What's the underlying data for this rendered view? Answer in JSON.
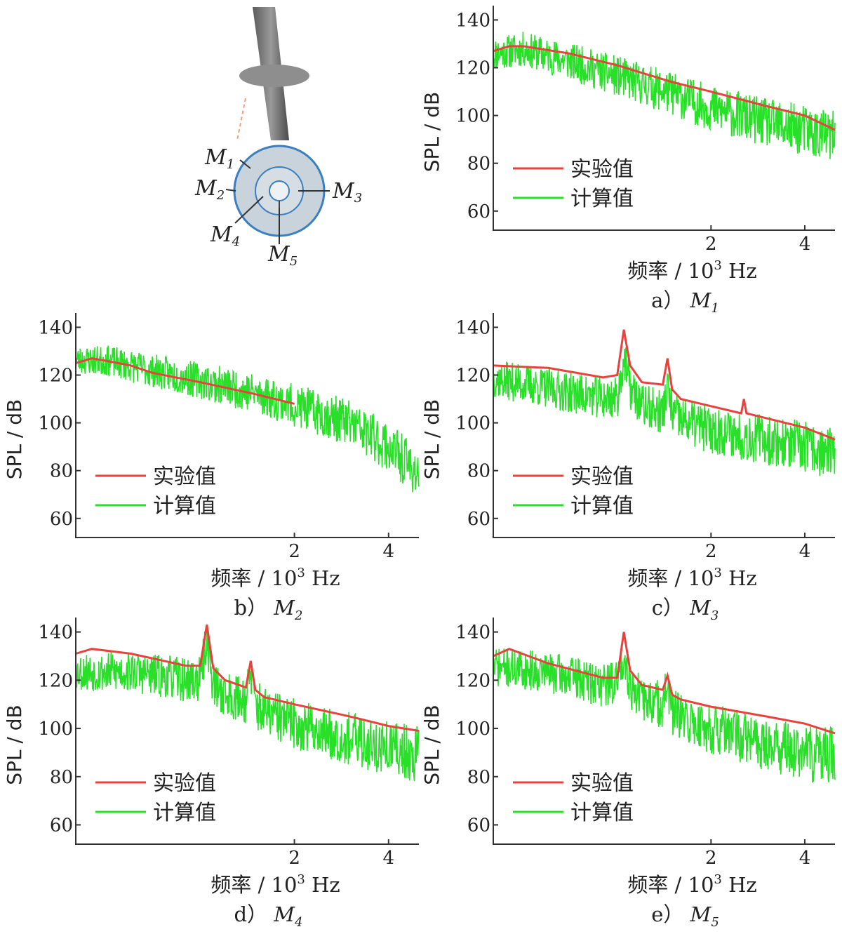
{
  "figure": {
    "schematic": {
      "labels": [
        {
          "name": "M",
          "sub": "1"
        },
        {
          "name": "M",
          "sub": "2"
        },
        {
          "name": "M",
          "sub": "3"
        },
        {
          "name": "M",
          "sub": "4"
        },
        {
          "name": "M",
          "sub": "5"
        }
      ]
    }
  },
  "chart_data": [
    {
      "type": "line",
      "panel_label": "a）",
      "panel_point": "M",
      "panel_sub": "1",
      "ylabel": "SPL / dB",
      "xlabel_prefix": "频率 / 10",
      "xlabel_exp": "3",
      "xlabel_unit": " Hz",
      "x_scale": "log",
      "xlim": [
        0.4,
        5.0
      ],
      "ylim": [
        52,
        146
      ],
      "y_ticks": [
        60,
        80,
        100,
        120,
        140
      ],
      "x_ticks": [
        {
          "value": 2,
          "label": "2"
        },
        {
          "value": 4,
          "label": "4"
        }
      ],
      "legend_position": "lower-left",
      "series": [
        {
          "name": "实验值",
          "color": "#e8423f",
          "x": [
            0.4,
            0.45,
            0.5,
            0.7,
            1.0,
            1.5,
            2.0,
            3.0,
            4.0,
            5.0
          ],
          "y": [
            127,
            129,
            129,
            126,
            121,
            114,
            110,
            104,
            100,
            94
          ]
        },
        {
          "name": "计算值",
          "color": "#27e027",
          "x": [
            0.4,
            0.5,
            0.7,
            1.0,
            1.5,
            2.0,
            3.0,
            4.0,
            5.0
          ],
          "y": [
            128,
            130,
            125,
            119,
            112,
            106,
            100,
            97,
            94
          ],
          "noise": 7,
          "noise_grow": 1.6,
          "seed": 11
        }
      ]
    },
    {
      "type": "line",
      "panel_label": "b）",
      "panel_point": "M",
      "panel_sub": "2",
      "ylabel": "SPL / dB",
      "xlabel_prefix": "频率 / 10",
      "xlabel_exp": "3",
      "xlabel_unit": " Hz",
      "x_scale": "log",
      "xlim": [
        0.4,
        5.0
      ],
      "ylim": [
        52,
        146
      ],
      "y_ticks": [
        60,
        80,
        100,
        120,
        140
      ],
      "x_ticks": [
        {
          "value": 2,
          "label": "2"
        },
        {
          "value": 4,
          "label": "4"
        }
      ],
      "legend_position": "lower-left",
      "series": [
        {
          "name": "实验值",
          "color": "#e8423f",
          "x": [
            0.4,
            0.45,
            0.5,
            0.6,
            0.7,
            1.0,
            1.5,
            2.0
          ],
          "y": [
            125,
            127,
            126,
            124,
            121,
            117,
            112,
            108
          ]
        },
        {
          "name": "计算值",
          "color": "#27e027",
          "x": [
            0.4,
            0.5,
            0.7,
            1.0,
            1.5,
            2.0,
            3.0,
            4.0,
            5.0
          ],
          "y": [
            128,
            128,
            124,
            120,
            115,
            110,
            103,
            93,
            82
          ],
          "noise": 6,
          "noise_grow": 1.8,
          "seed": 23
        }
      ]
    },
    {
      "type": "line",
      "panel_label": "c）",
      "panel_point": "M",
      "panel_sub": "3",
      "ylabel": "SPL / dB",
      "xlabel_prefix": "频率 / 10",
      "xlabel_exp": "3",
      "xlabel_unit": " Hz",
      "x_scale": "log",
      "xlim": [
        0.4,
        5.0
      ],
      "ylim": [
        52,
        146
      ],
      "y_ticks": [
        60,
        80,
        100,
        120,
        140
      ],
      "x_ticks": [
        {
          "value": 2,
          "label": "2"
        },
        {
          "value": 4,
          "label": "4"
        }
      ],
      "legend_position": "lower-left",
      "series": [
        {
          "name": "实验值",
          "color": "#e8423f",
          "x": [
            0.4,
            0.6,
            0.9,
            1.0,
            1.05,
            1.1,
            1.2,
            1.4,
            1.45,
            1.5,
            1.6,
            2.0,
            2.5,
            2.55,
            2.6,
            3.0,
            4.0,
            5.0
          ],
          "y": [
            124,
            123,
            119,
            120,
            139,
            124,
            117,
            116,
            127,
            114,
            110,
            107,
            104,
            110,
            104,
            102,
            98,
            93
          ]
        },
        {
          "name": "计算值",
          "color": "#27e027",
          "x": [
            0.4,
            0.6,
            0.9,
            1.0,
            1.05,
            1.1,
            1.2,
            1.4,
            1.45,
            1.5,
            1.6,
            2.0,
            3.0,
            4.0,
            5.0
          ],
          "y": [
            121,
            117,
            113,
            113,
            130,
            117,
            110,
            107,
            117,
            107,
            104,
            100,
            96,
            93,
            90
          ],
          "noise": 8,
          "noise_grow": 1.4,
          "seed": 37
        }
      ]
    },
    {
      "type": "line",
      "panel_label": "d）",
      "panel_point": "M",
      "panel_sub": "4",
      "ylabel": "SPL / dB",
      "xlabel_prefix": "频率 / 10",
      "xlabel_exp": "3",
      "xlabel_unit": " Hz",
      "x_scale": "log",
      "xlim": [
        0.4,
        5.0
      ],
      "ylim": [
        52,
        146
      ],
      "y_ticks": [
        60,
        80,
        100,
        120,
        140
      ],
      "x_ticks": [
        {
          "value": 2,
          "label": "2"
        },
        {
          "value": 4,
          "label": "4"
        }
      ],
      "legend_position": "lower-left",
      "series": [
        {
          "name": "实验值",
          "color": "#e8423f",
          "x": [
            0.4,
            0.45,
            0.6,
            0.9,
            1.0,
            1.05,
            1.1,
            1.2,
            1.4,
            1.45,
            1.5,
            1.6,
            2.0,
            3.0,
            4.0,
            5.0
          ],
          "y": [
            131,
            133,
            131,
            126,
            126,
            143,
            125,
            120,
            117,
            128,
            116,
            113,
            110,
            105,
            101,
            99
          ]
        },
        {
          "name": "计算值",
          "color": "#27e027",
          "x": [
            0.4,
            0.6,
            0.9,
            1.0,
            1.05,
            1.1,
            1.2,
            1.4,
            1.45,
            1.5,
            1.6,
            2.0,
            3.0,
            4.0,
            5.0
          ],
          "y": [
            126,
            126,
            123,
            123,
            140,
            121,
            117,
            115,
            126,
            113,
            110,
            105,
            99,
            95,
            93
          ],
          "noise": 8,
          "noise_grow": 1.5,
          "seed": 53
        }
      ]
    },
    {
      "type": "line",
      "panel_label": "e）",
      "panel_point": "M",
      "panel_sub": "5",
      "ylabel": "SPL / dB",
      "xlabel_prefix": "频率 / 10",
      "xlabel_exp": "3",
      "xlabel_unit": " Hz",
      "x_scale": "log",
      "xlim": [
        0.4,
        5.0
      ],
      "ylim": [
        52,
        146
      ],
      "y_ticks": [
        60,
        80,
        100,
        120,
        140
      ],
      "x_ticks": [
        {
          "value": 2,
          "label": "2"
        },
        {
          "value": 4,
          "label": "4"
        }
      ],
      "legend_position": "lower-left",
      "series": [
        {
          "name": "实验值",
          "color": "#e8423f",
          "x": [
            0.4,
            0.45,
            0.6,
            0.9,
            1.0,
            1.05,
            1.1,
            1.2,
            1.4,
            1.45,
            1.5,
            1.6,
            2.0,
            3.0,
            4.0,
            5.0
          ],
          "y": [
            130,
            133,
            127,
            121,
            121,
            140,
            124,
            118,
            116,
            122,
            114,
            112,
            109,
            105,
            102,
            98
          ]
        },
        {
          "name": "计算值",
          "color": "#27e027",
          "x": [
            0.4,
            0.6,
            0.9,
            1.0,
            1.05,
            1.1,
            1.2,
            1.4,
            1.45,
            1.5,
            1.6,
            2.0,
            3.0,
            4.0,
            5.0
          ],
          "y": [
            128,
            126,
            121,
            122,
            134,
            121,
            115,
            113,
            120,
            110,
            107,
            103,
            97,
            93,
            92
          ],
          "noise": 8,
          "noise_grow": 1.5,
          "seed": 71
        }
      ]
    }
  ]
}
